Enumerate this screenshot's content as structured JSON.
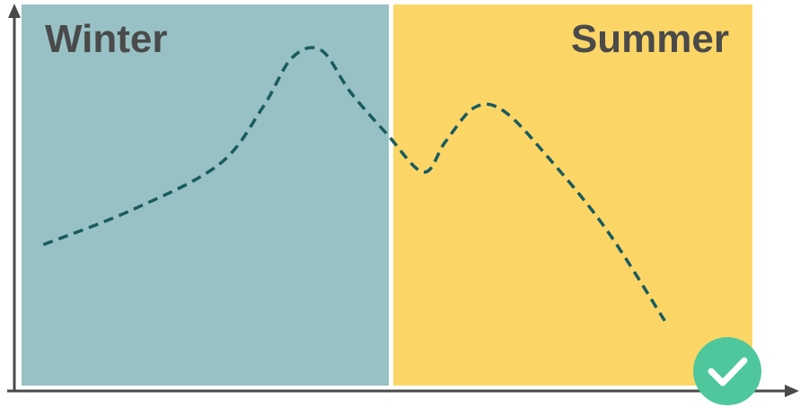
{
  "chart_data": {
    "type": "line",
    "title": "",
    "xlabel": "",
    "ylabel": "",
    "xlim": [
      0,
      100
    ],
    "ylim": [
      0,
      100
    ],
    "grid": false,
    "line_style": "dashed",
    "regions": [
      {
        "label": "Winter",
        "x_start": 0,
        "x_end": 50.5,
        "color": "#97c1c4",
        "label_position": "top-left"
      },
      {
        "label": "Summer",
        "x_start": 50.5,
        "x_end": 100,
        "color": "#fbd667",
        "label_position": "top-right"
      }
    ],
    "series": [
      {
        "color": "#1a5b5e",
        "points": [
          {
            "x": 3,
            "y": 37
          },
          {
            "x": 15,
            "y": 46
          },
          {
            "x": 27,
            "y": 58
          },
          {
            "x": 33,
            "y": 73
          },
          {
            "x": 37,
            "y": 86
          },
          {
            "x": 41,
            "y": 88
          },
          {
            "x": 45,
            "y": 77
          },
          {
            "x": 50,
            "y": 66
          },
          {
            "x": 55,
            "y": 56
          },
          {
            "x": 58,
            "y": 64
          },
          {
            "x": 62,
            "y": 73
          },
          {
            "x": 66,
            "y": 72
          },
          {
            "x": 72,
            "y": 60
          },
          {
            "x": 80,
            "y": 41
          },
          {
            "x": 88,
            "y": 17
          }
        ]
      }
    ]
  },
  "badge": {
    "icon": "checkmark-icon",
    "color": "#4ec79c"
  },
  "colors": {
    "axis": "#4a4a4a",
    "label": "#4a4a4a"
  }
}
